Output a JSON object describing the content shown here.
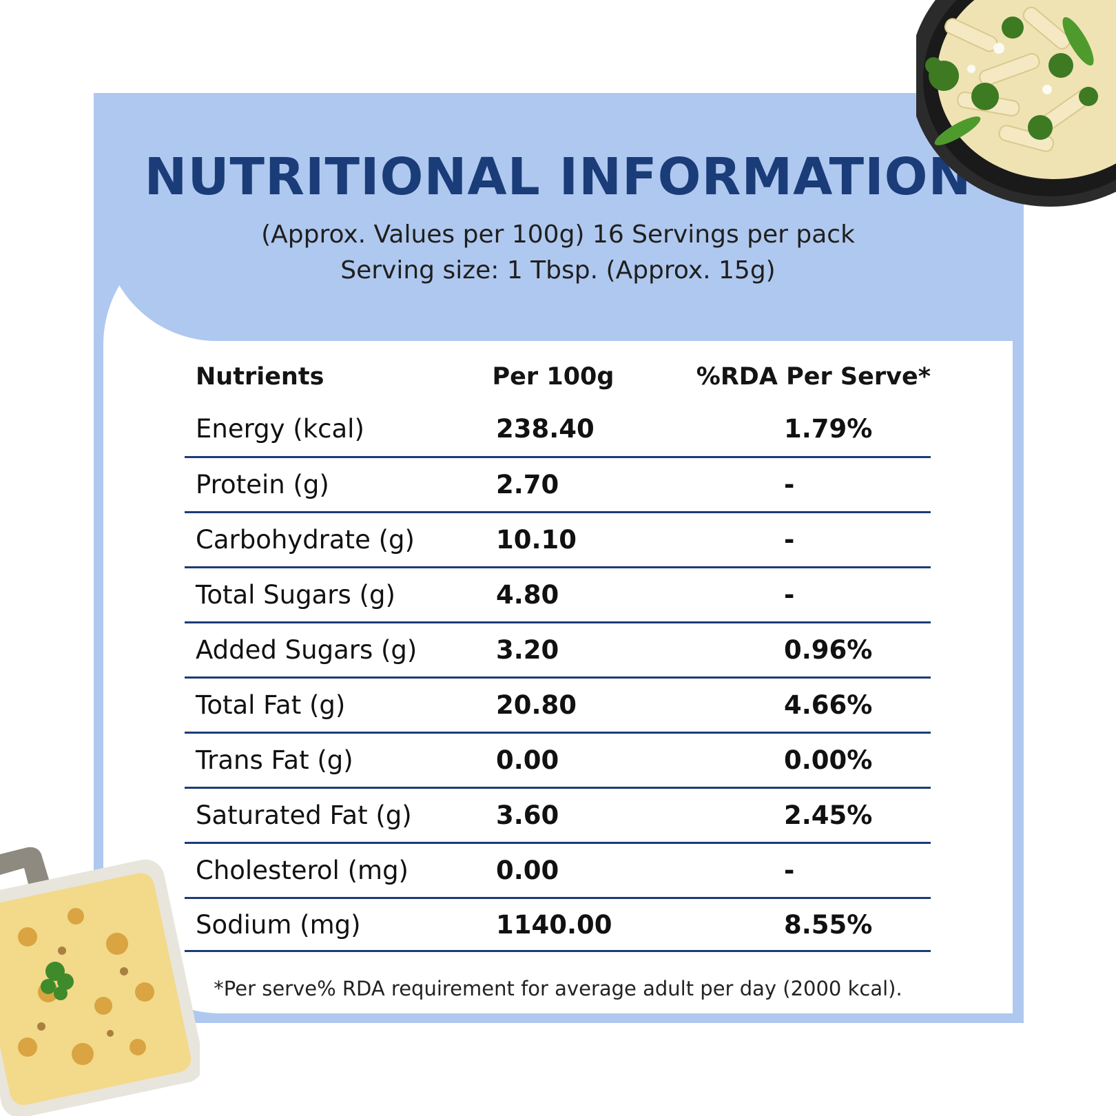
{
  "header": {
    "title": "NUTRITIONAL INFORMATION",
    "subtitle_line1": "(Approx. Values per 100g) 16 Servings per pack",
    "subtitle_line2": "Serving size: 1 Tbsp. (Approx. 15g)"
  },
  "table": {
    "columns": [
      "Nutrients",
      "Per 100g",
      "%RDA Per Serve*"
    ],
    "rows": [
      {
        "nutrient": "Energy (kcal)",
        "per_100g": "238.40",
        "rda": "1.79%"
      },
      {
        "nutrient": "Protein (g)",
        "per_100g": "2.70",
        "rda": "-"
      },
      {
        "nutrient": "Carbohydrate (g)",
        "per_100g": "10.10",
        "rda": "-"
      },
      {
        "nutrient": "Total Sugars (g)",
        "per_100g": "4.80",
        "rda": "-"
      },
      {
        "nutrient": "Added Sugars (g)",
        "per_100g": "3.20",
        "rda": "0.96%"
      },
      {
        "nutrient": "Total Fat (g)",
        "per_100g": "20.80",
        "rda": "4.66%"
      },
      {
        "nutrient": "Trans Fat (g)",
        "per_100g": "0.00",
        "rda": "0.00%"
      },
      {
        "nutrient": "Saturated Fat (g)",
        "per_100g": "3.60",
        "rda": "2.45%"
      },
      {
        "nutrient": "Cholesterol (mg)",
        "per_100g": "0.00",
        "rda": "-"
      },
      {
        "nutrient": "Sodium (mg)",
        "per_100g": "1140.00",
        "rda": "8.55%"
      }
    ]
  },
  "footnote": "*Per serve% RDA requirement for average adult per day (2000 kcal).",
  "images": {
    "top_right": "pasta-bowl-photo",
    "bottom_left": "baked-casserole-photo"
  },
  "colors": {
    "panel": "#afc8ef",
    "title": "#1a3c78",
    "rule": "#1a3c78"
  }
}
